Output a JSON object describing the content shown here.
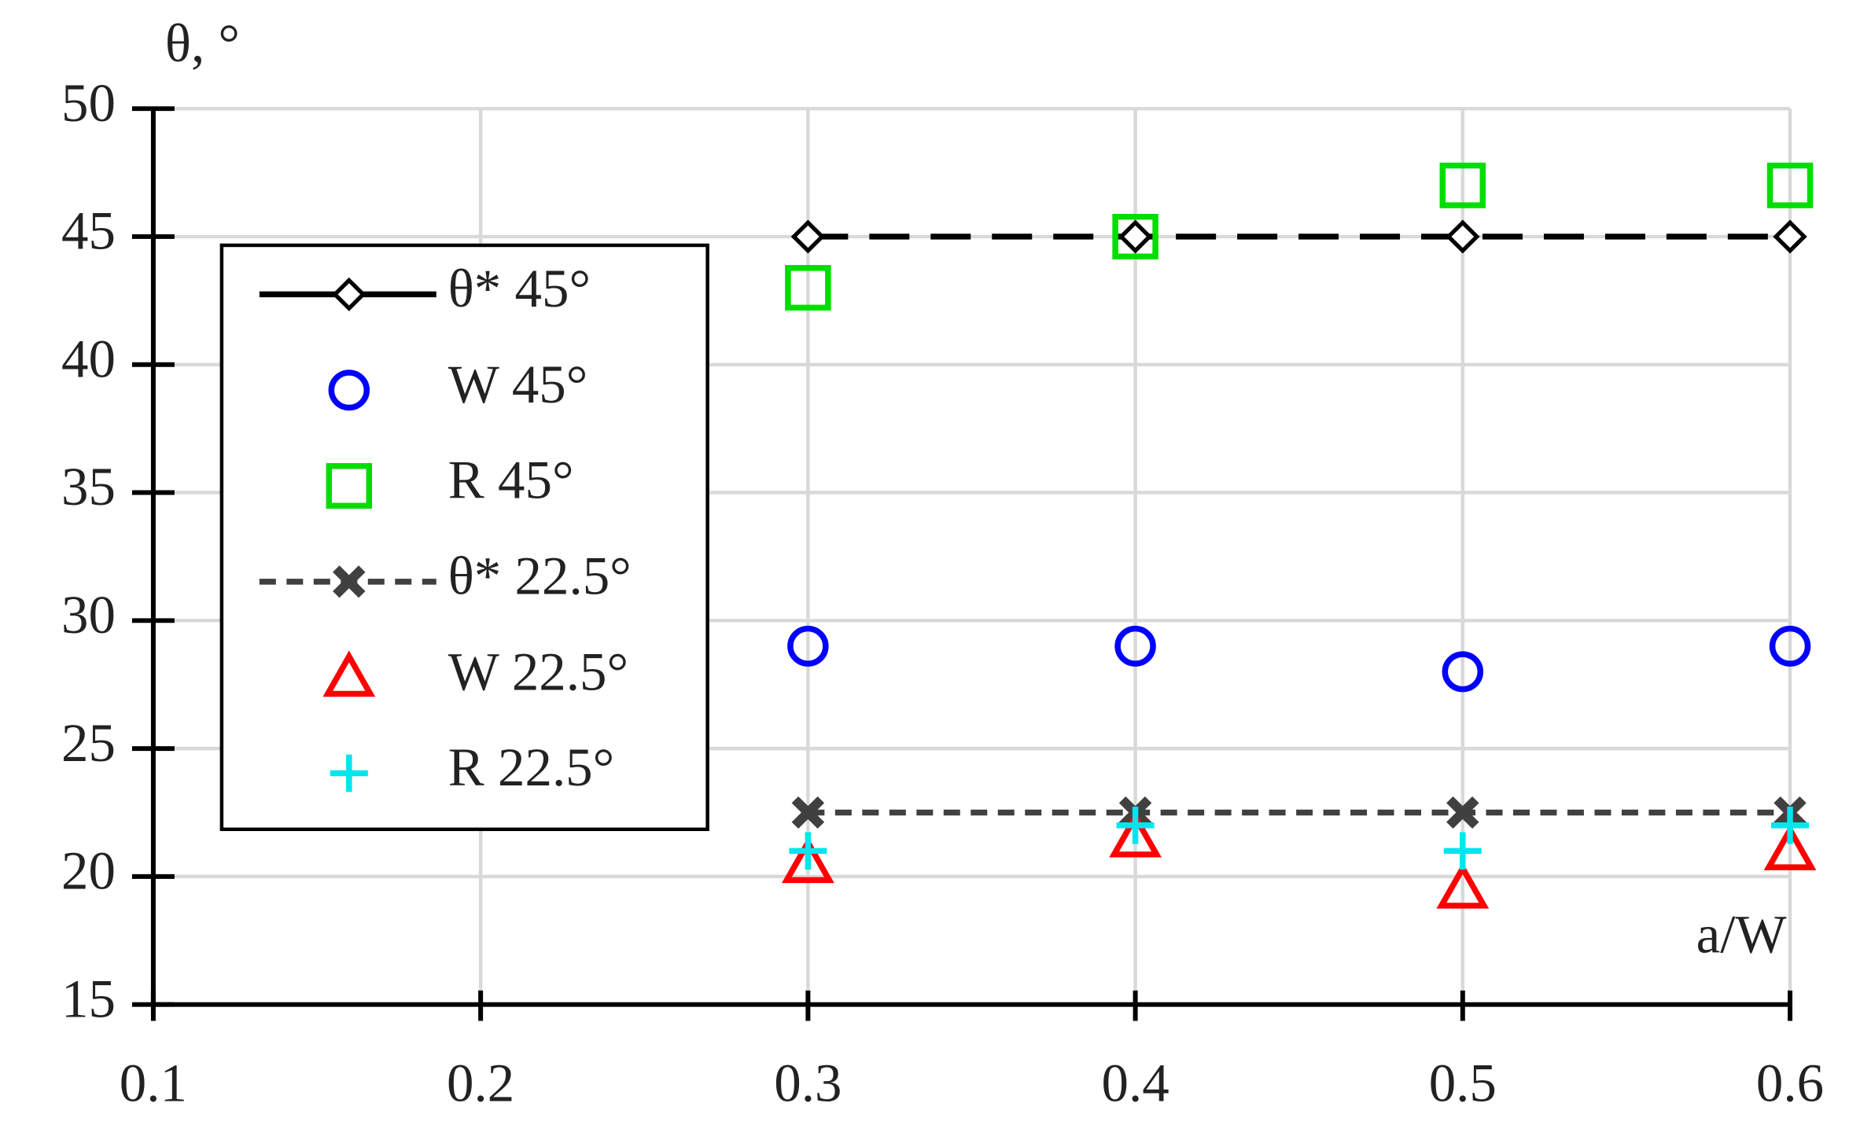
{
  "chart_data": {
    "type": "scatter",
    "y_label": "θ, °",
    "x_label": "a/W",
    "xlim": [
      0.1,
      0.6
    ],
    "xticks": [
      0.1,
      0.2,
      0.3,
      0.4,
      0.5,
      0.6
    ],
    "ylim": [
      15,
      50
    ],
    "yticks": [
      15,
      20,
      25,
      30,
      35,
      40,
      45,
      50
    ],
    "grid": true,
    "legend": "upper left",
    "x": [
      0.3,
      0.4,
      0.5,
      0.6
    ],
    "series": [
      {
        "name": "θ* 45°",
        "color": "#000000",
        "marker": "diamond",
        "line": "long-dash",
        "values": [
          45,
          45,
          45,
          45
        ]
      },
      {
        "name": "W 45°",
        "color": "#0000ff",
        "marker": "circle",
        "line": "none",
        "values": [
          29,
          29,
          28,
          29
        ]
      },
      {
        "name": "R 45°",
        "color": "#00dd00",
        "marker": "square",
        "line": "none",
        "values": [
          43,
          45,
          47,
          47
        ]
      },
      {
        "name": "θ* 22.5°",
        "color": "#404040",
        "marker": "x",
        "line": "short-dash",
        "values": [
          22.5,
          22.5,
          22.5,
          22.5
        ]
      },
      {
        "name": "W 22.5°",
        "color": "#ff0000",
        "marker": "triangle",
        "line": "none",
        "values": [
          20.5,
          21.5,
          19.5,
          21
        ]
      },
      {
        "name": "R 22.5°",
        "color": "#00e5ee",
        "marker": "plus",
        "line": "none",
        "values": [
          21,
          22,
          21,
          22
        ]
      }
    ]
  }
}
